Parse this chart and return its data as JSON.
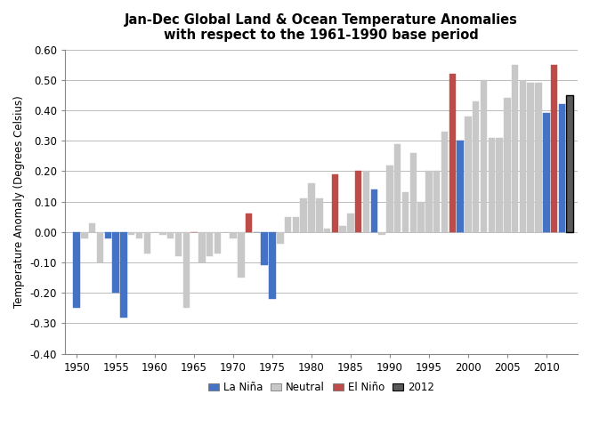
{
  "title_line1": "Jan-Dec Global Land & Ocean Temperature Anomalies",
  "title_line2": "with respect to the 1961-1990 base period",
  "ylabel": "Temperature Anomaly (Degrees Celsius)",
  "ylim": [
    -0.4,
    0.6
  ],
  "yticks": [
    -0.4,
    -0.3,
    -0.2,
    -0.1,
    0.0,
    0.1,
    0.2,
    0.3,
    0.4,
    0.5,
    0.6
  ],
  "xticks": [
    1950,
    1955,
    1960,
    1965,
    1970,
    1975,
    1980,
    1985,
    1990,
    1995,
    2000,
    2005,
    2010
  ],
  "colors": {
    "La Nina": "#4472C4",
    "Neutral": "#C8C8C8",
    "El Nino": "#BE4B48",
    "2012": "#595959"
  },
  "bars": [
    {
      "year": 1950,
      "value": -0.25,
      "type": "La Nina"
    },
    {
      "year": 1951,
      "value": -0.02,
      "type": "Neutral"
    },
    {
      "year": 1952,
      "value": 0.03,
      "type": "Neutral"
    },
    {
      "year": 1953,
      "value": -0.1,
      "type": "Neutral"
    },
    {
      "year": 1954,
      "value": -0.02,
      "type": "La Nina"
    },
    {
      "year": 1955,
      "value": -0.2,
      "type": "La Nina"
    },
    {
      "year": 1956,
      "value": -0.28,
      "type": "La Nina"
    },
    {
      "year": 1957,
      "value": -0.01,
      "type": "Neutral"
    },
    {
      "year": 1958,
      "value": -0.02,
      "type": "Neutral"
    },
    {
      "year": 1959,
      "value": -0.07,
      "type": "Neutral"
    },
    {
      "year": 1960,
      "value": 0.0,
      "type": "Neutral"
    },
    {
      "year": 1961,
      "value": -0.01,
      "type": "Neutral"
    },
    {
      "year": 1962,
      "value": -0.02,
      "type": "Neutral"
    },
    {
      "year": 1963,
      "value": -0.08,
      "type": "Neutral"
    },
    {
      "year": 1964,
      "value": -0.25,
      "type": "Neutral"
    },
    {
      "year": 1965,
      "value": 0.0,
      "type": "El Nino"
    },
    {
      "year": 1966,
      "value": -0.1,
      "type": "Neutral"
    },
    {
      "year": 1967,
      "value": -0.08,
      "type": "Neutral"
    },
    {
      "year": 1968,
      "value": -0.07,
      "type": "Neutral"
    },
    {
      "year": 1969,
      "value": 0.0,
      "type": "Neutral"
    },
    {
      "year": 1970,
      "value": -0.02,
      "type": "Neutral"
    },
    {
      "year": 1971,
      "value": -0.15,
      "type": "Neutral"
    },
    {
      "year": 1972,
      "value": 0.06,
      "type": "El Nino"
    },
    {
      "year": 1973,
      "value": 0.0,
      "type": "La Nina"
    },
    {
      "year": 1974,
      "value": -0.11,
      "type": "La Nina"
    },
    {
      "year": 1975,
      "value": -0.22,
      "type": "La Nina"
    },
    {
      "year": 1976,
      "value": -0.04,
      "type": "Neutral"
    },
    {
      "year": 1977,
      "value": 0.05,
      "type": "Neutral"
    },
    {
      "year": 1978,
      "value": 0.05,
      "type": "Neutral"
    },
    {
      "year": 1979,
      "value": 0.11,
      "type": "Neutral"
    },
    {
      "year": 1980,
      "value": 0.16,
      "type": "Neutral"
    },
    {
      "year": 1981,
      "value": 0.11,
      "type": "Neutral"
    },
    {
      "year": 1982,
      "value": 0.01,
      "type": "Neutral"
    },
    {
      "year": 1983,
      "value": 0.19,
      "type": "El Nino"
    },
    {
      "year": 1984,
      "value": 0.02,
      "type": "Neutral"
    },
    {
      "year": 1985,
      "value": 0.06,
      "type": "Neutral"
    },
    {
      "year": 1986,
      "value": 0.2,
      "type": "El Nino"
    },
    {
      "year": 1987,
      "value": 0.2,
      "type": "Neutral"
    },
    {
      "year": 1988,
      "value": 0.14,
      "type": "La Nina"
    },
    {
      "year": 1989,
      "value": -0.01,
      "type": "Neutral"
    },
    {
      "year": 1990,
      "value": 0.22,
      "type": "Neutral"
    },
    {
      "year": 1991,
      "value": 0.29,
      "type": "Neutral"
    },
    {
      "year": 1992,
      "value": 0.13,
      "type": "Neutral"
    },
    {
      "year": 1993,
      "value": 0.26,
      "type": "Neutral"
    },
    {
      "year": 1994,
      "value": 0.1,
      "type": "Neutral"
    },
    {
      "year": 1995,
      "value": 0.2,
      "type": "Neutral"
    },
    {
      "year": 1996,
      "value": 0.2,
      "type": "Neutral"
    },
    {
      "year": 1997,
      "value": 0.33,
      "type": "Neutral"
    },
    {
      "year": 1998,
      "value": 0.52,
      "type": "El Nino"
    },
    {
      "year": 1999,
      "value": 0.3,
      "type": "La Nina"
    },
    {
      "year": 2000,
      "value": 0.38,
      "type": "Neutral"
    },
    {
      "year": 2001,
      "value": 0.43,
      "type": "Neutral"
    },
    {
      "year": 2002,
      "value": 0.5,
      "type": "Neutral"
    },
    {
      "year": 2003,
      "value": 0.31,
      "type": "Neutral"
    },
    {
      "year": 2004,
      "value": 0.31,
      "type": "Neutral"
    },
    {
      "year": 2005,
      "value": 0.44,
      "type": "Neutral"
    },
    {
      "year": 2006,
      "value": 0.55,
      "type": "Neutral"
    },
    {
      "year": 2007,
      "value": 0.5,
      "type": "Neutral"
    },
    {
      "year": 2008,
      "value": 0.49,
      "type": "Neutral"
    },
    {
      "year": 2009,
      "value": 0.49,
      "type": "Neutral"
    },
    {
      "year": 2010,
      "value": 0.39,
      "type": "La Nina"
    },
    {
      "year": 2011,
      "value": 0.55,
      "type": "El Nino"
    },
    {
      "year": 2012,
      "value": 0.42,
      "type": "La Nina"
    },
    {
      "year": 2013,
      "value": 0.45,
      "type": "2012"
    }
  ],
  "bar_width": 0.85,
  "background_color": "#FFFFFF",
  "grid_color": "#BBBBBB"
}
